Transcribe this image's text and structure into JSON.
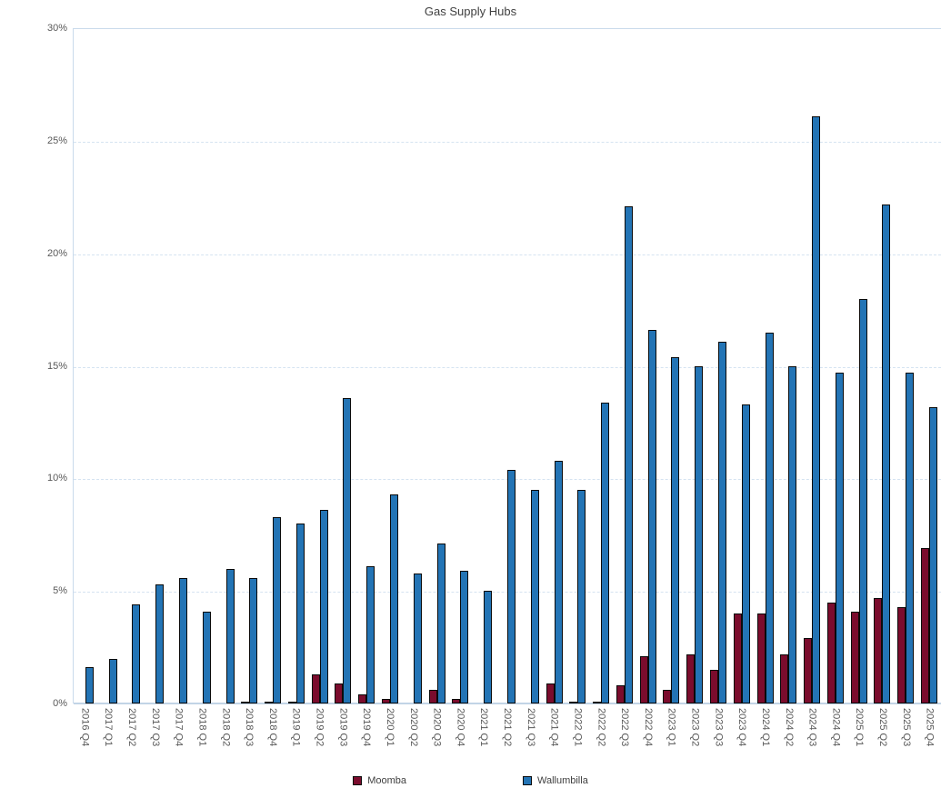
{
  "title": "Gas Supply Hubs",
  "chart_data": {
    "type": "bar",
    "title": "Gas Supply Hubs",
    "categories": [
      "2016 Q4",
      "2017 Q1",
      "2017 Q2",
      "2017 Q3",
      "2017 Q4",
      "2018 Q1",
      "2018 Q2",
      "2018 Q3",
      "2018 Q4",
      "2019 Q1",
      "2019 Q2",
      "2019 Q3",
      "2019 Q4",
      "2020 Q1",
      "2020 Q2",
      "2020 Q3",
      "2020 Q4",
      "2021 Q1",
      "2021 Q2",
      "2021 Q3",
      "2021 Q4",
      "2022 Q1",
      "2022 Q2",
      "2022 Q3",
      "2022 Q4",
      "2023 Q1",
      "2023 Q2",
      "2023 Q3",
      "2023 Q4",
      "2024 Q1",
      "2024 Q2",
      "2024 Q3",
      "2024 Q4",
      "2025 Q1",
      "2025 Q2",
      "2025 Q3",
      "2025 Q4"
    ],
    "series": [
      {
        "name": "Moomba",
        "color": "#7b0c2d",
        "values": [
          0,
          0,
          0,
          0,
          0,
          0,
          0,
          0.1,
          0.1,
          0.1,
          1.3,
          0.9,
          0.4,
          0.2,
          0,
          0.6,
          0.2,
          0,
          0,
          0,
          0.9,
          0.1,
          0.1,
          0.8,
          2.1,
          0.6,
          2.2,
          1.5,
          4.0,
          4.0,
          2.2,
          2.9,
          4.5,
          4.1,
          4.7,
          4.3,
          6.9
        ]
      },
      {
        "name": "Wallumbilla",
        "color": "#2374b5",
        "values": [
          1.6,
          2.0,
          4.4,
          5.3,
          5.6,
          4.1,
          6.0,
          5.6,
          8.3,
          8.0,
          8.6,
          13.6,
          6.1,
          9.3,
          5.8,
          7.1,
          5.9,
          5.0,
          10.4,
          9.5,
          10.8,
          9.5,
          13.4,
          22.1,
          16.6,
          15.4,
          15.0,
          16.1,
          13.3,
          16.5,
          15.0,
          26.1,
          14.7,
          18.0,
          22.2,
          14.7,
          13.2
        ]
      }
    ],
    "xlabel": "",
    "ylabel": "",
    "ylim": [
      0,
      30
    ],
    "ytick_step": 5,
    "ytick_labels": [
      "0%",
      "5%",
      "10%",
      "15%",
      "20%",
      "25%",
      "30%"
    ],
    "grid": true,
    "legend_position": "bottom"
  }
}
